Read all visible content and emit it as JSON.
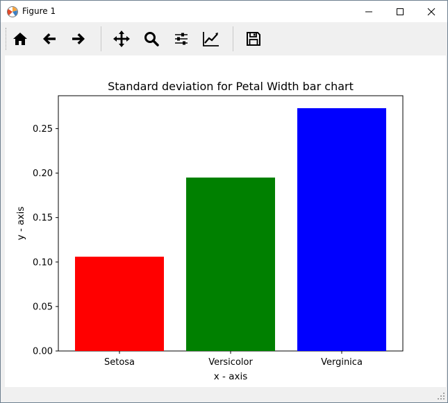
{
  "window": {
    "title": "Figure 1"
  },
  "toolbar": {
    "buttons": [
      {
        "name": "home-icon",
        "tooltip": "Home"
      },
      {
        "name": "back-arrow-icon",
        "tooltip": "Back"
      },
      {
        "name": "forward-arrow-icon",
        "tooltip": "Forward"
      },
      {
        "name": "pan-icon",
        "tooltip": "Pan"
      },
      {
        "name": "zoom-icon",
        "tooltip": "Zoom"
      },
      {
        "name": "subplots-icon",
        "tooltip": "Subplots"
      },
      {
        "name": "edit-curves-icon",
        "tooltip": "Customize"
      },
      {
        "name": "save-icon",
        "tooltip": "Save"
      }
    ]
  },
  "chart_data": {
    "type": "bar",
    "title": "Standard deviation for Petal Width bar chart",
    "xlabel": "x - axis",
    "ylabel": "y - axis",
    "categories": [
      "Setosa",
      "Versicolor",
      "Verginica"
    ],
    "values": [
      0.106,
      0.195,
      0.273
    ],
    "colors": [
      "#ff0000",
      "#008000",
      "#0000ff"
    ],
    "ylim": [
      0,
      0.287
    ],
    "yticks": [
      0.0,
      0.05,
      0.1,
      0.15,
      0.2,
      0.25
    ],
    "ytick_labels": [
      "0.00",
      "0.05",
      "0.10",
      "0.15",
      "0.20",
      "0.25"
    ],
    "grid": false
  }
}
